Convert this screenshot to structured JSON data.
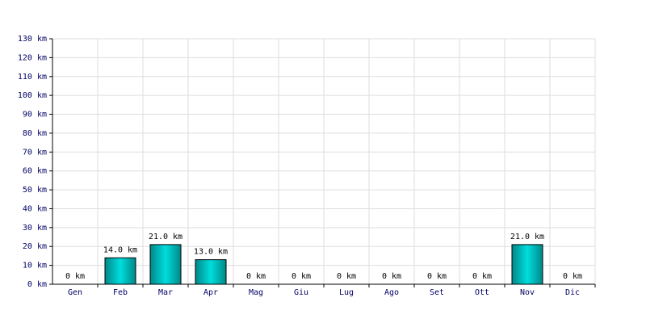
{
  "chart_data": {
    "type": "bar",
    "categories": [
      "Gen",
      "Feb",
      "Mar",
      "Apr",
      "Mag",
      "Giu",
      "Lug",
      "Ago",
      "Set",
      "Ott",
      "Nov",
      "Dic"
    ],
    "values": [
      0,
      14,
      21,
      13,
      0,
      0,
      0,
      0,
      0,
      0,
      21,
      0
    ],
    "value_labels": [
      "0 km",
      "14.0 km",
      "21.0 km",
      "13.0 km",
      "0 km",
      "0 km",
      "0 km",
      "0 km",
      "0 km",
      "0 km",
      "21.0 km",
      "0 km"
    ],
    "color": "#00dddd",
    "ylim": [
      0,
      130
    ],
    "yticks": [
      {
        "value": 0,
        "label": "0 km"
      },
      {
        "value": 10,
        "label": "10 km"
      },
      {
        "value": 20,
        "label": "20 km"
      },
      {
        "value": 30,
        "label": "30 km"
      },
      {
        "value": 40,
        "label": "40 km"
      },
      {
        "value": 50,
        "label": "50 km"
      },
      {
        "value": 60,
        "label": "60 km"
      },
      {
        "value": 70,
        "label": "70 km"
      },
      {
        "value": 80,
        "label": "80 km"
      },
      {
        "value": 90,
        "label": "90 km"
      },
      {
        "value": 100,
        "label": "100 km"
      },
      {
        "value": 110,
        "label": "110 km"
      },
      {
        "value": 120,
        "label": "120 km"
      },
      {
        "value": 130,
        "label": "130 km"
      }
    ],
    "grid": true
  }
}
